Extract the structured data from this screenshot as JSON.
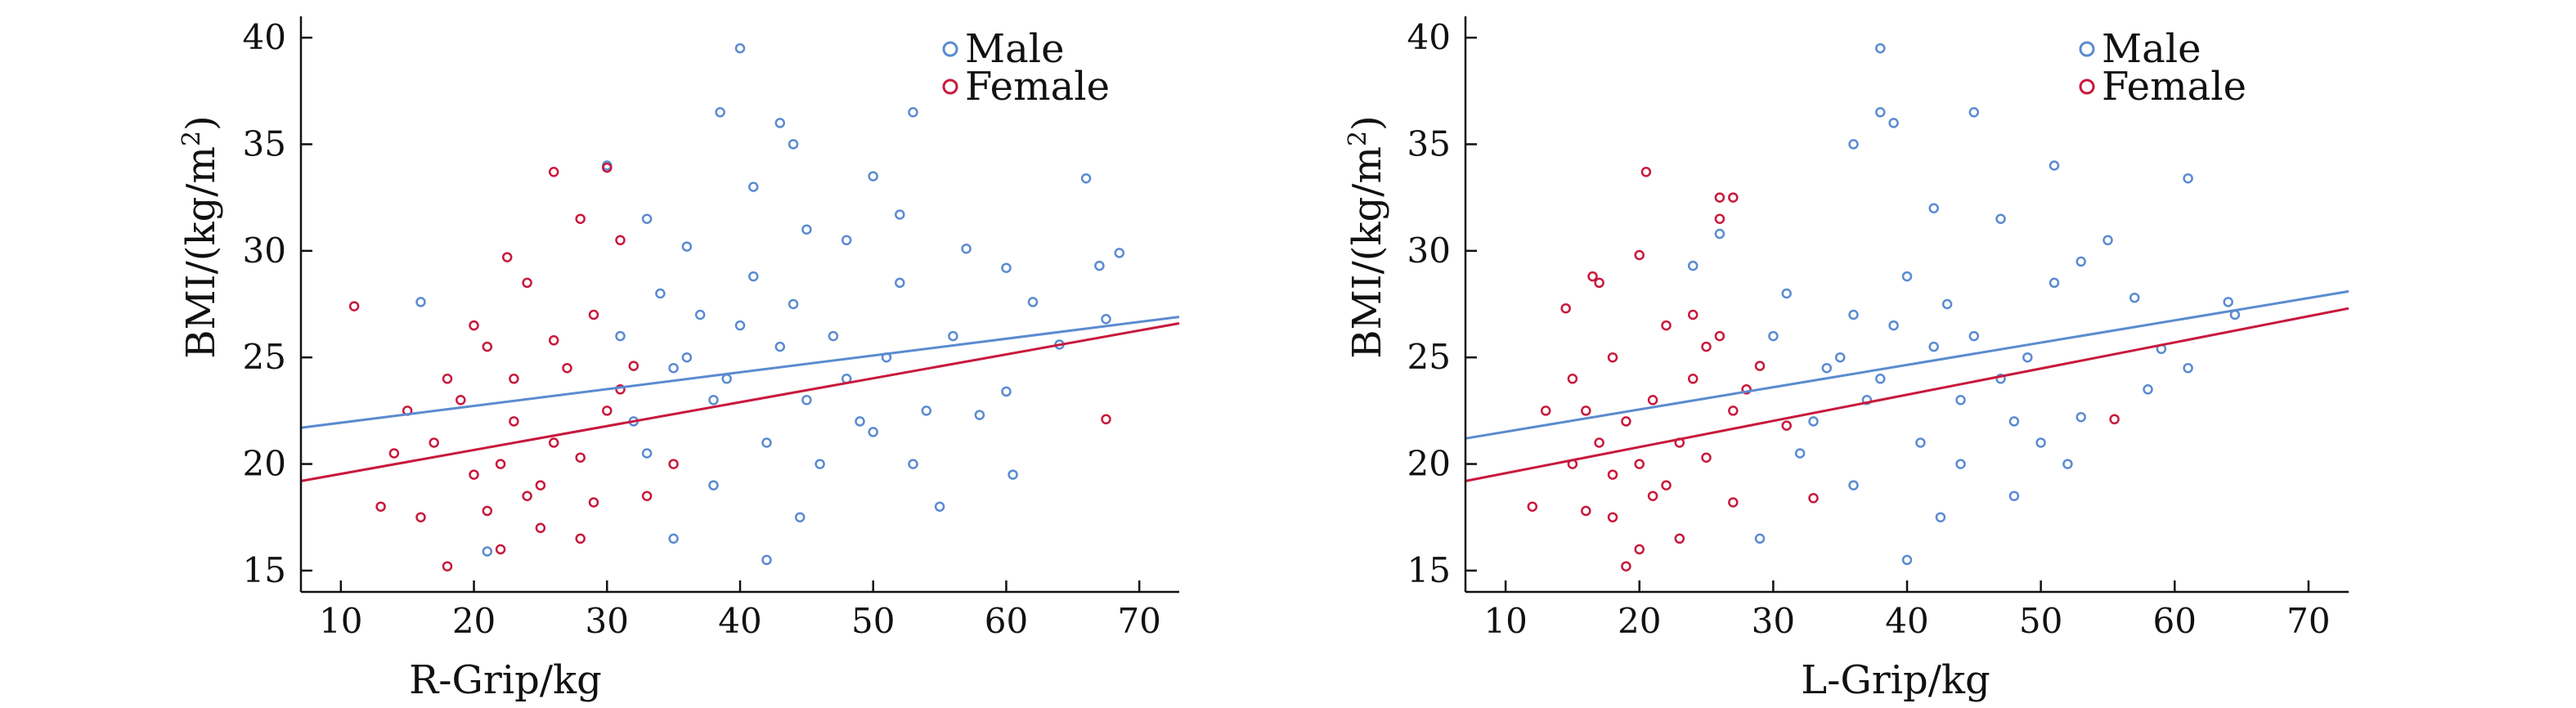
{
  "figure": {
    "panels": [
      {
        "xlabel": "R-Grip/kg",
        "ylabel_main": "BMI/(kg/m",
        "ylabel_sup": "2",
        "ylabel_close": ")",
        "legend": [
          "Male",
          "Female"
        ]
      },
      {
        "xlabel": "L-Grip/kg",
        "ylabel_main": "BMI/(kg/m",
        "ylabel_sup": "2",
        "ylabel_close": ")",
        "legend": [
          "Male",
          "Female"
        ]
      }
    ]
  },
  "colors": {
    "male": "#5b8bd0",
    "female": "#c8193c",
    "axis": "#111111"
  },
  "chart_data": [
    {
      "type": "scatter",
      "xlabel": "R-Grip/kg",
      "ylabel": "BMI/(kg/m2)",
      "xlim": [
        7,
        73
      ],
      "ylim": [
        14,
        41
      ],
      "xticks": [
        10,
        20,
        30,
        40,
        50,
        60,
        70
      ],
      "yticks": [
        15,
        20,
        25,
        30,
        35,
        40
      ],
      "legend_position": "top-right",
      "series": [
        {
          "name": "Male",
          "color": "#5b8bd0",
          "fit_line": {
            "x": [
              7,
              73
            ],
            "y": [
              21.7,
              26.9
            ]
          },
          "points": [
            [
              40,
              39.5
            ],
            [
              38.5,
              36.5
            ],
            [
              53,
              36.5
            ],
            [
              43,
              36
            ],
            [
              44,
              35
            ],
            [
              50,
              33.5
            ],
            [
              66,
              33.4
            ],
            [
              30,
              34
            ],
            [
              41,
              33
            ],
            [
              33,
              31.5
            ],
            [
              52,
              31.7
            ],
            [
              68.5,
              29.9
            ],
            [
              67,
              29.3
            ],
            [
              57,
              30.1
            ],
            [
              60,
              29.2
            ],
            [
              45,
              31
            ],
            [
              48,
              30.5
            ],
            [
              36,
              30.2
            ],
            [
              62,
              27.6
            ],
            [
              64,
              25.6
            ],
            [
              67.5,
              26.8
            ],
            [
              16,
              27.6
            ],
            [
              60,
              23.4
            ],
            [
              58,
              22.3
            ],
            [
              55,
              18
            ],
            [
              42,
              15.5
            ],
            [
              35,
              16.5
            ],
            [
              44.5,
              17.5
            ],
            [
              60.5,
              19.5
            ],
            [
              21,
              15.9
            ],
            [
              38,
              19
            ],
            [
              46,
              20
            ],
            [
              50,
              21.5
            ],
            [
              54,
              22.5
            ],
            [
              32,
              22
            ],
            [
              48,
              24
            ],
            [
              36,
              25
            ],
            [
              40,
              26.5
            ],
            [
              44,
              27.5
            ],
            [
              52,
              28.5
            ],
            [
              56,
              26
            ],
            [
              34,
              28
            ],
            [
              38,
              23
            ],
            [
              42,
              21
            ],
            [
              47,
              26
            ],
            [
              51,
              25
            ],
            [
              39,
              24
            ],
            [
              43,
              25.5
            ],
            [
              45,
              23
            ],
            [
              37,
              27
            ],
            [
              49,
              22
            ],
            [
              53,
              20
            ],
            [
              41,
              28.8
            ],
            [
              35,
              24.5
            ],
            [
              33,
              20.5
            ],
            [
              31,
              26
            ]
          ]
        },
        {
          "name": "Female",
          "color": "#c8193c",
          "fit_line": {
            "x": [
              7,
              73
            ],
            "y": [
              19.2,
              26.6
            ]
          },
          "points": [
            [
              26,
              33.7
            ],
            [
              30,
              33.9
            ],
            [
              28,
              31.5
            ],
            [
              22.5,
              29.7
            ],
            [
              31,
              30.5
            ],
            [
              11,
              27.4
            ],
            [
              67.5,
              22.1
            ],
            [
              18,
              15.2
            ],
            [
              16,
              17.5
            ],
            [
              22,
              16
            ],
            [
              25,
              17
            ],
            [
              28,
              16.5
            ],
            [
              33,
              18.5
            ],
            [
              14,
              20.5
            ],
            [
              13,
              18
            ],
            [
              35,
              20
            ],
            [
              24,
              28.5
            ],
            [
              20,
              26.5
            ],
            [
              29,
              27
            ],
            [
              21,
              25.5
            ],
            [
              27,
              24.5
            ],
            [
              19,
              23
            ],
            [
              23,
              22
            ],
            [
              26,
              21
            ],
            [
              30,
              22.5
            ],
            [
              17,
              21
            ],
            [
              22,
              20
            ],
            [
              25,
              19
            ],
            [
              28,
              20.3
            ],
            [
              20,
              19.5
            ],
            [
              24,
              18.5
            ],
            [
              31,
              23.5
            ],
            [
              18,
              24
            ],
            [
              26,
              25.8
            ],
            [
              32,
              24.6
            ],
            [
              15,
              22.5
            ],
            [
              23,
              24
            ],
            [
              29,
              18.2
            ],
            [
              21,
              17.8
            ]
          ]
        }
      ]
    },
    {
      "type": "scatter",
      "xlabel": "L-Grip/kg",
      "ylabel": "BMI/(kg/m2)",
      "xlim": [
        7,
        73
      ],
      "ylim": [
        14,
        41
      ],
      "xticks": [
        10,
        20,
        30,
        40,
        50,
        60,
        70
      ],
      "yticks": [
        15,
        20,
        25,
        30,
        35,
        40
      ],
      "legend_position": "top-right",
      "series": [
        {
          "name": "Male",
          "color": "#5b8bd0",
          "fit_line": {
            "x": [
              7,
              73
            ],
            "y": [
              21.2,
              28.1
            ]
          },
          "points": [
            [
              38,
              39.5
            ],
            [
              38,
              36.5
            ],
            [
              45,
              36.5
            ],
            [
              39,
              36
            ],
            [
              36,
              35
            ],
            [
              51,
              34
            ],
            [
              61,
              33.4
            ],
            [
              42,
              32
            ],
            [
              47,
              31.5
            ],
            [
              55,
              30.5
            ],
            [
              53,
              29.5
            ],
            [
              57,
              27.8
            ],
            [
              64.5,
              27
            ],
            [
              64,
              27.6
            ],
            [
              59,
              25.4
            ],
            [
              61,
              24.5
            ],
            [
              58,
              23.5
            ],
            [
              53,
              22.2
            ],
            [
              24,
              29.3
            ],
            [
              26,
              30.8
            ],
            [
              40,
              15.5
            ],
            [
              29,
              16.5
            ],
            [
              42.5,
              17.5
            ],
            [
              48,
              18.5
            ],
            [
              36,
              19
            ],
            [
              44,
              20
            ],
            [
              50,
              21
            ],
            [
              33,
              22
            ],
            [
              47,
              24
            ],
            [
              35,
              25
            ],
            [
              39,
              26.5
            ],
            [
              43,
              27.5
            ],
            [
              51,
              28.5
            ],
            [
              31,
              28
            ],
            [
              37,
              23
            ],
            [
              41,
              21
            ],
            [
              45,
              26
            ],
            [
              49,
              25
            ],
            [
              38,
              24
            ],
            [
              42,
              25.5
            ],
            [
              44,
              23
            ],
            [
              36,
              27
            ],
            [
              48,
              22
            ],
            [
              52,
              20
            ],
            [
              40,
              28.8
            ],
            [
              34,
              24.5
            ],
            [
              32,
              20.5
            ],
            [
              30,
              26
            ]
          ]
        },
        {
          "name": "Female",
          "color": "#c8193c",
          "fit_line": {
            "x": [
              7,
              73
            ],
            "y": [
              19.2,
              27.3
            ]
          },
          "points": [
            [
              20.5,
              33.7
            ],
            [
              26,
              32.5
            ],
            [
              27,
              32.5
            ],
            [
              26,
              31.5
            ],
            [
              20,
              29.8
            ],
            [
              16.5,
              28.8
            ],
            [
              17,
              28.5
            ],
            [
              14.5,
              27.3
            ],
            [
              55.5,
              22.1
            ],
            [
              19,
              15.2
            ],
            [
              20,
              16
            ],
            [
              23,
              16.5
            ],
            [
              18,
              17.5
            ],
            [
              33,
              18.4
            ],
            [
              15,
              20
            ],
            [
              12,
              18
            ],
            [
              16,
              22.5
            ],
            [
              22,
              26.5
            ],
            [
              25,
              25.5
            ],
            [
              18,
              25
            ],
            [
              24,
              24
            ],
            [
              21,
              23
            ],
            [
              19,
              22
            ],
            [
              23,
              21
            ],
            [
              27,
              22.5
            ],
            [
              17,
              21
            ],
            [
              20,
              20
            ],
            [
              22,
              19
            ],
            [
              25,
              20.3
            ],
            [
              18,
              19.5
            ],
            [
              21,
              18.5
            ],
            [
              28,
              23.5
            ],
            [
              15,
              24
            ],
            [
              26,
              26
            ],
            [
              29,
              24.6
            ],
            [
              13,
              22.5
            ],
            [
              24,
              27
            ],
            [
              27,
              18.2
            ],
            [
              16,
              17.8
            ],
            [
              31,
              21.8
            ]
          ]
        }
      ]
    }
  ]
}
